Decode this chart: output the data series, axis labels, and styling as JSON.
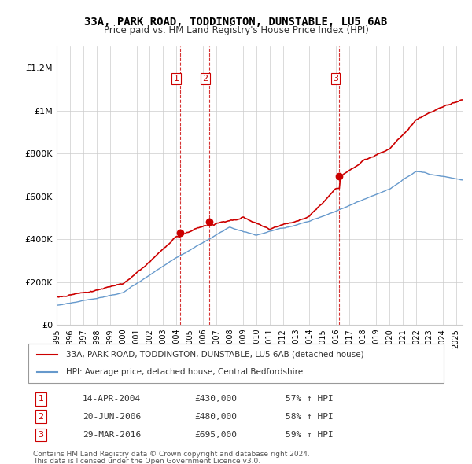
{
  "title": "33A, PARK ROAD, TODDINGTON, DUNSTABLE, LU5 6AB",
  "subtitle": "Price paid vs. HM Land Registry's House Price Index (HPI)",
  "legend_line1": "33A, PARK ROAD, TODDINGTON, DUNSTABLE, LU5 6AB (detached house)",
  "legend_line2": "HPI: Average price, detached house, Central Bedfordshire",
  "footnote1": "Contains HM Land Registry data © Crown copyright and database right 2024.",
  "footnote2": "This data is licensed under the Open Government Licence v3.0.",
  "sale_color": "#cc0000",
  "hpi_color": "#6699cc",
  "vline_color": "#cc0000",
  "sales": [
    {
      "num": 1,
      "date_label": "14-APR-2004",
      "price": 430000,
      "hpi_pct": "57% ↑ HPI",
      "x": 2004.28
    },
    {
      "num": 2,
      "date_label": "20-JUN-2006",
      "price": 480000,
      "hpi_pct": "58% ↑ HPI",
      "x": 2006.47
    },
    {
      "num": 3,
      "date_label": "29-MAR-2016",
      "price": 695000,
      "hpi_pct": "59% ↑ HPI",
      "x": 2016.24
    }
  ],
  "ylim": [
    0,
    1300000
  ],
  "yticks": [
    0,
    200000,
    400000,
    600000,
    800000,
    1000000,
    1200000
  ],
  "ytick_labels": [
    "£0",
    "£200K",
    "£400K",
    "£600K",
    "£800K",
    "£1M",
    "£1.2M"
  ],
  "xmin": 1995.0,
  "xmax": 2025.5
}
